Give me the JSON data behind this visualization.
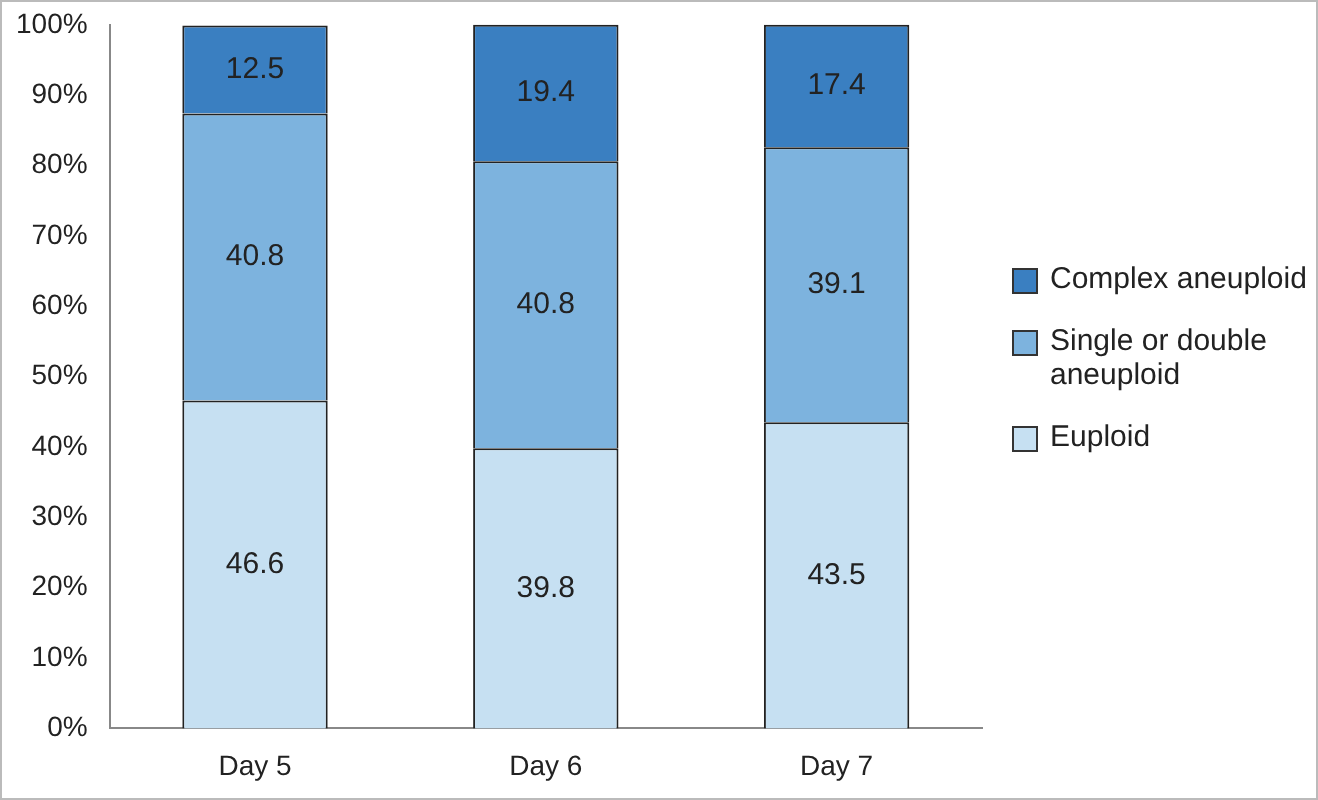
{
  "chart_data": {
    "type": "bar",
    "stacked": true,
    "categories": [
      "Day 5",
      "Day 6",
      "Day 7"
    ],
    "series": [
      {
        "name": "Euploid",
        "color": "#c6e0f2",
        "values": [
          46.6,
          39.8,
          43.5
        ]
      },
      {
        "name": "Single or double aneuploid",
        "color": "#7db3de",
        "values": [
          40.8,
          40.8,
          39.1
        ]
      },
      {
        "name": "Complex aneuploid",
        "color": "#3a7fc1",
        "values": [
          12.5,
          19.4,
          17.4
        ]
      }
    ],
    "ylim": [
      0,
      100
    ],
    "yticks": [
      {
        "value": 0,
        "label": "0%"
      },
      {
        "value": 10,
        "label": "10%"
      },
      {
        "value": 20,
        "label": "20%"
      },
      {
        "value": 30,
        "label": "30%"
      },
      {
        "value": 40,
        "label": "40%"
      },
      {
        "value": 50,
        "label": "50%"
      },
      {
        "value": 60,
        "label": "60%"
      },
      {
        "value": 70,
        "label": "70%"
      },
      {
        "value": 80,
        "label": "80%"
      },
      {
        "value": 90,
        "label": "90%"
      },
      {
        "value": 100,
        "label": "100%"
      }
    ],
    "grid": false,
    "legend": "right",
    "data_labels": true
  }
}
